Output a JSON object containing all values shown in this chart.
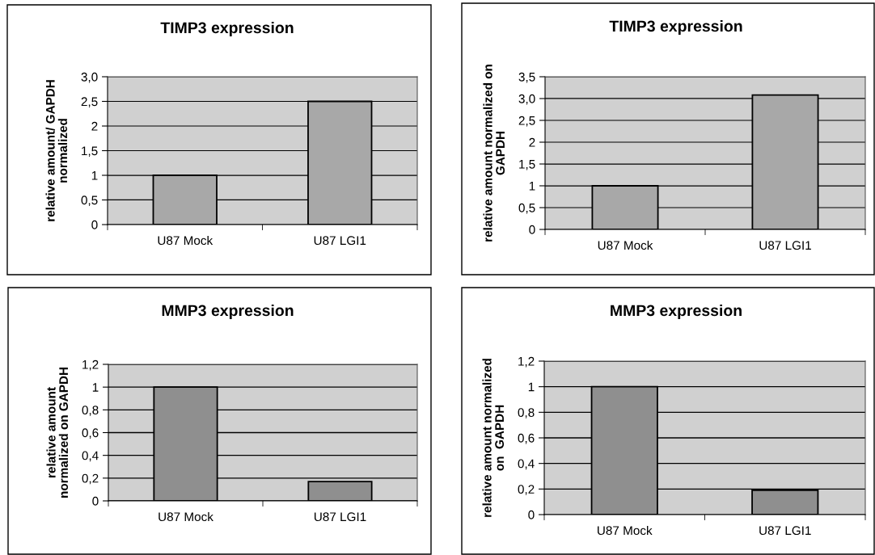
{
  "chart_data": [
    {
      "type": "bar",
      "title": "TIMP3 expression",
      "ylabel": "relative amount/ GAPDH\nnormalized",
      "categories": [
        "U87 Mock",
        "U87 LGI1"
      ],
      "values": [
        1,
        2.5
      ],
      "color": "#a8a8a8",
      "ylim": [
        0,
        3
      ],
      "yticks": [
        0,
        {
          "value": 0.5,
          "label": "0,5"
        },
        1,
        {
          "value": 1.5,
          "label": "1,5"
        },
        2,
        {
          "value": 2.5,
          "label": "2,5"
        },
        {
          "value": 3,
          "label": "3,0"
        }
      ],
      "grid": "y"
    },
    {
      "type": "bar",
      "title": "TIMP3 expression",
      "ylabel": "relative amount normalized on\nGAPDH",
      "categories": [
        "U87 Mock",
        "U87 LGI1"
      ],
      "values": [
        1,
        3.08
      ],
      "color": "#a8a8a8",
      "ylim": [
        0,
        3.5
      ],
      "yticks": [
        0,
        {
          "value": 0.5,
          "label": "0,5"
        },
        1,
        {
          "value": 1.5,
          "label": "1,5"
        },
        2,
        {
          "value": 2.5,
          "label": "2,5"
        },
        {
          "value": 3,
          "label": "3,0"
        },
        {
          "value": 3.5,
          "label": "3,5"
        }
      ],
      "grid": "y"
    },
    {
      "type": "bar",
      "title": "MMP3 expression",
      "ylabel": "relative amount\nnormalized on GAPDH",
      "categories": [
        "U87 Mock",
        "U87 LGI1"
      ],
      "values": [
        1,
        0.17
      ],
      "color": "#8f8f8f",
      "ylim": [
        0,
        1.2
      ],
      "yticks": [
        0,
        {
          "value": 0.2,
          "label": "0,2"
        },
        {
          "value": 0.4,
          "label": "0,4"
        },
        {
          "value": 0.6,
          "label": "0,6"
        },
        {
          "value": 0.8,
          "label": "0,8"
        },
        1,
        {
          "value": 1.2,
          "label": "1,2"
        }
      ],
      "grid": "y"
    },
    {
      "type": "bar",
      "title": "MMP3 expression",
      "ylabel": "relative amount normalized\non  GAPDH",
      "categories": [
        "U87 Mock",
        "U87 LGI1"
      ],
      "values": [
        1,
        0.19
      ],
      "color": "#8f8f8f",
      "ylim": [
        0,
        1.2
      ],
      "yticks": [
        0,
        {
          "value": 0.2,
          "label": "0,2"
        },
        {
          "value": 0.4,
          "label": "0,4"
        },
        {
          "value": 0.6,
          "label": "0,6"
        },
        {
          "value": 0.8,
          "label": "0,8"
        },
        1,
        {
          "value": 1.2,
          "label": "1,2"
        }
      ],
      "grid": "y"
    }
  ]
}
